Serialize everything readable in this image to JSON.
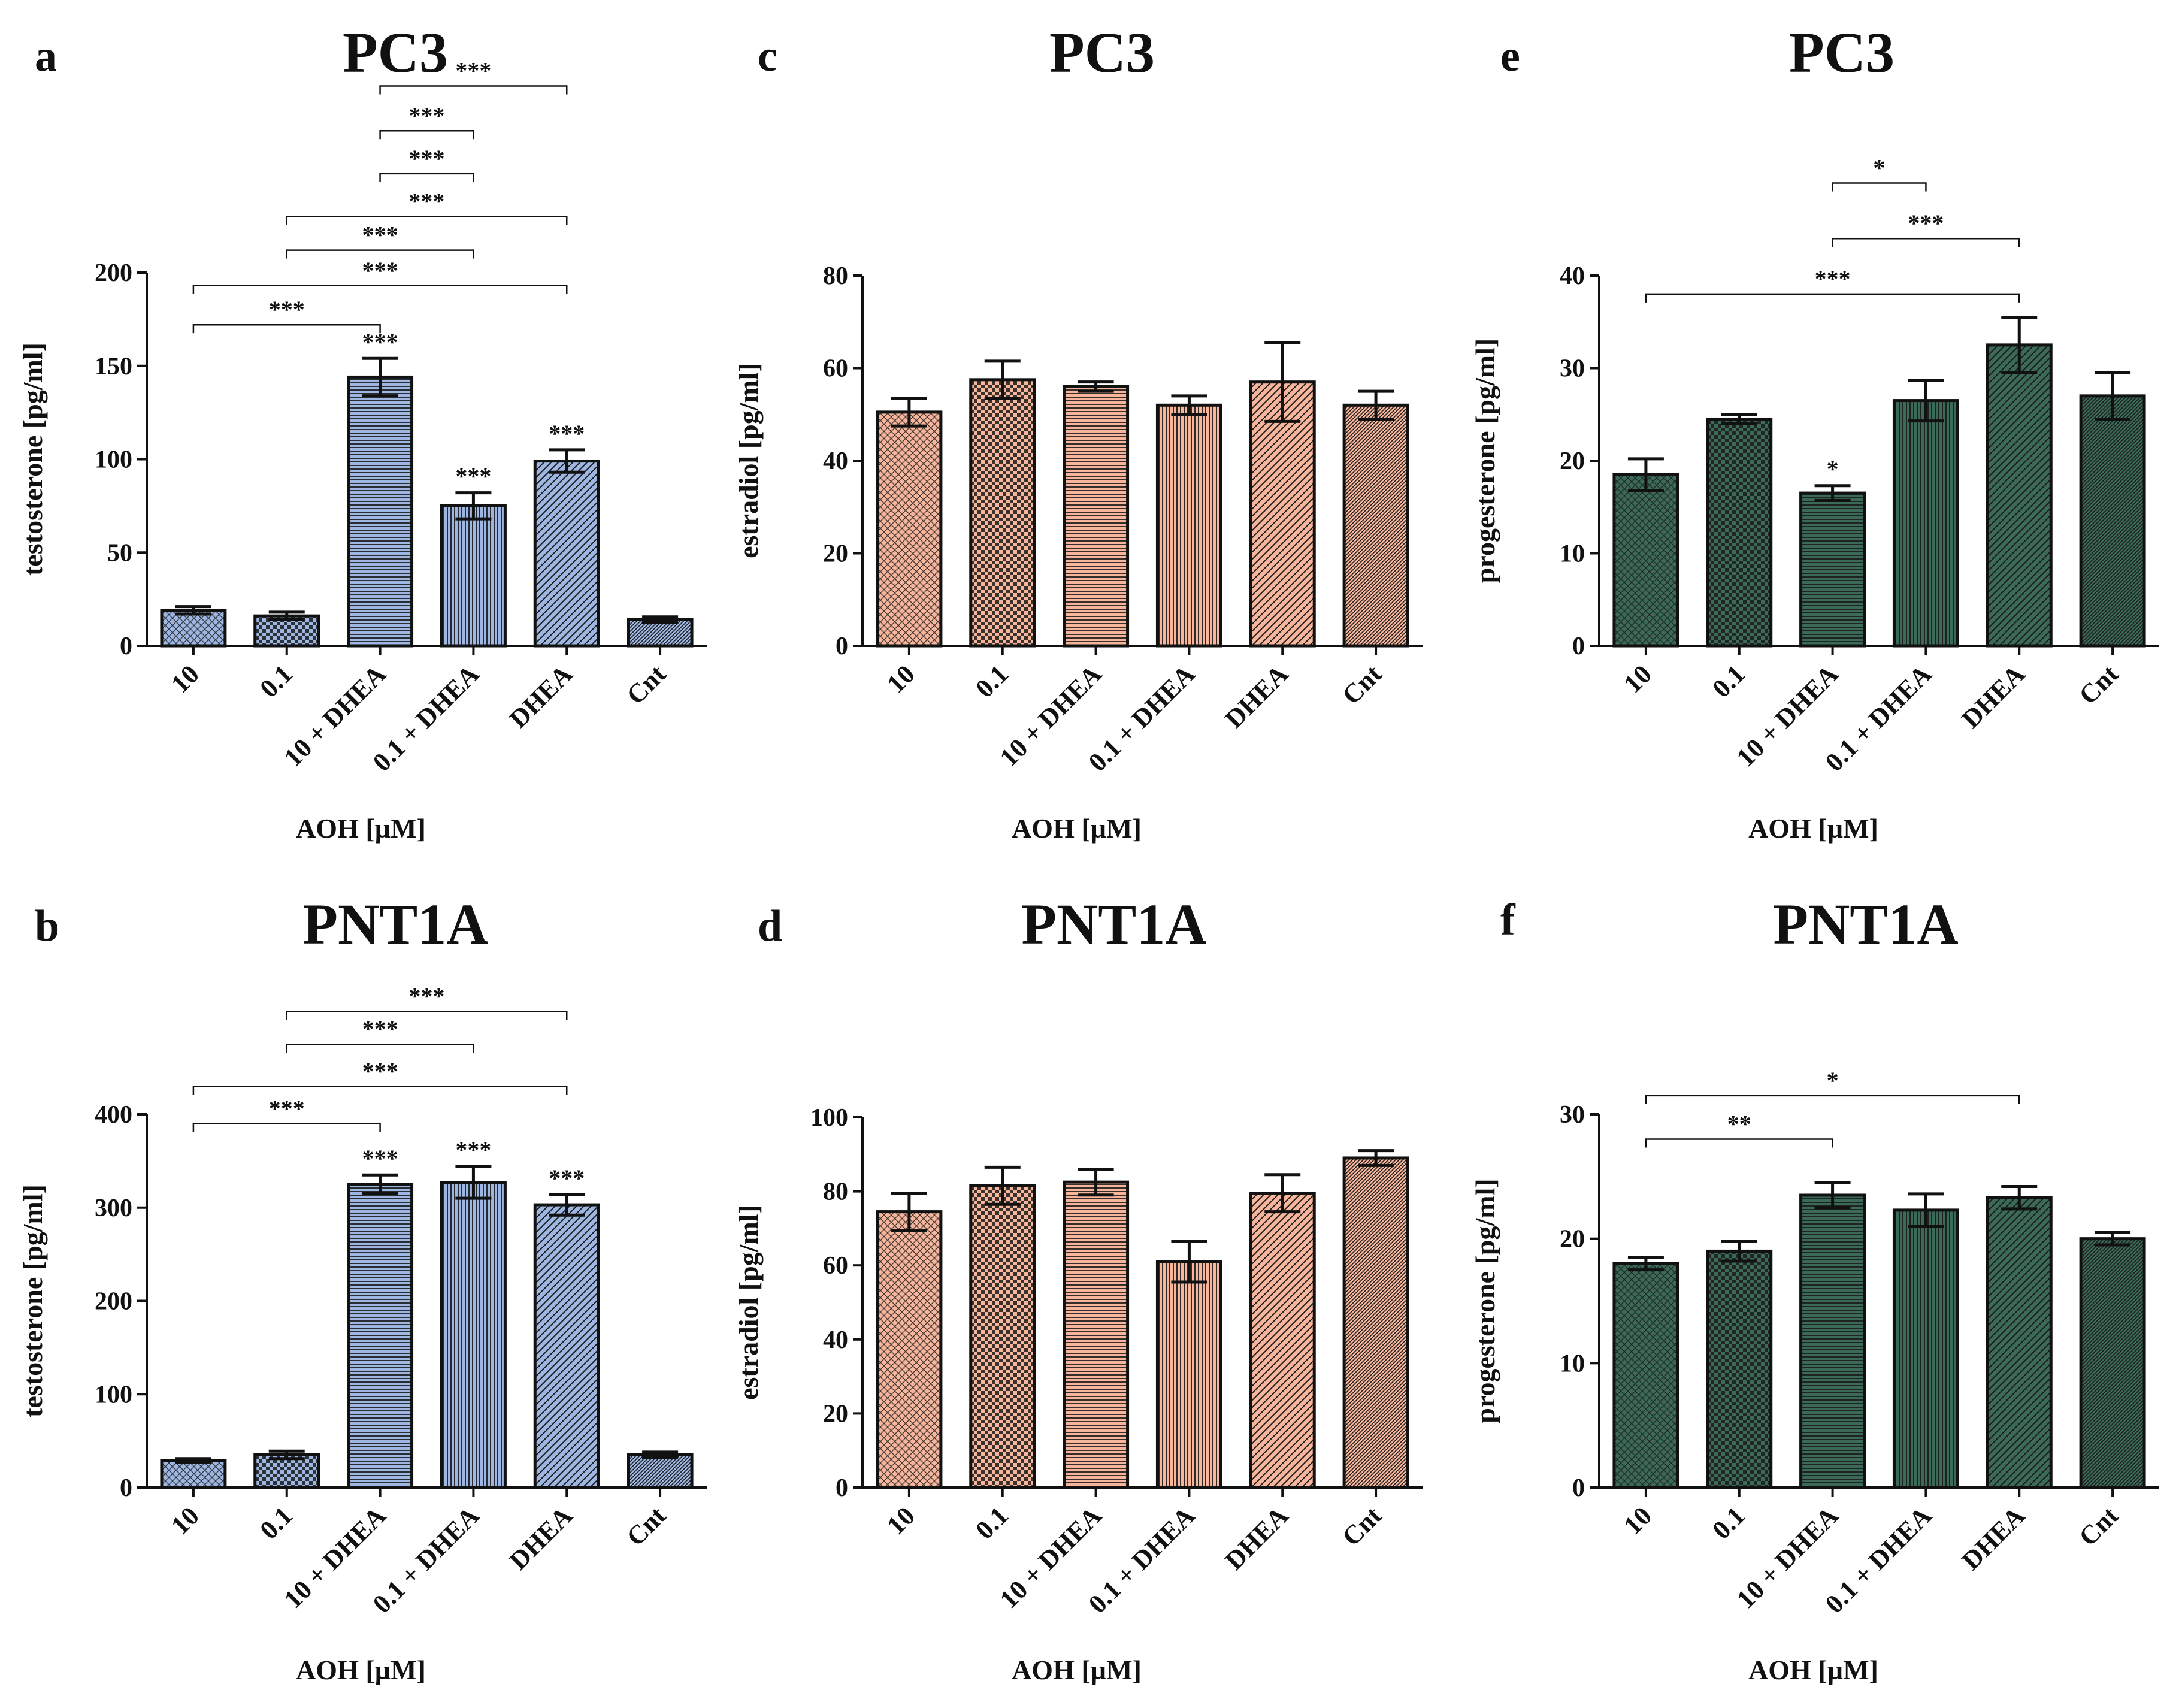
{
  "figure": {
    "panels": [
      "a",
      "b",
      "c",
      "d",
      "e",
      "f"
    ]
  },
  "colors": {
    "blue": "#9db6e2",
    "salmon": "#f7b69b",
    "green": "#3b6a57",
    "line": "#111111"
  },
  "chart_data": [
    {
      "id": "a",
      "type": "bar",
      "letter": "a",
      "title": "PC3",
      "xlabel": "AOH [µM]",
      "ylabel": "testosterone  [pg/ml]",
      "categories": [
        "10",
        "0.1",
        "10 + DHEA",
        "0.1 + DHEA",
        "DHEA",
        "Cnt"
      ],
      "values": [
        19,
        16,
        144,
        75,
        99,
        14
      ],
      "errors": [
        2,
        2,
        10,
        7,
        6,
        1.5
      ],
      "ylim": [
        0,
        200
      ],
      "yticks": [
        0,
        50,
        100,
        150,
        200
      ],
      "bar_stars": [
        "",
        "",
        "***",
        "***",
        "***",
        ""
      ],
      "brackets": [
        {
          "from": 0,
          "to": 2,
          "y": 172,
          "label": "***"
        },
        {
          "from": 0,
          "to": 4,
          "y": 193,
          "label": "***"
        },
        {
          "from": 1,
          "to": 3,
          "y": 212,
          "label": "***"
        },
        {
          "from": 1,
          "to": 4,
          "y": 230,
          "label": "***"
        },
        {
          "from": 2,
          "to": 3,
          "y": 253,
          "label": "***"
        },
        {
          "from": 2,
          "to": 3,
          "y": 276,
          "label": "***"
        },
        {
          "from": 2,
          "to": 4,
          "y": 300,
          "label": "***"
        }
      ]
    },
    {
      "id": "b",
      "type": "bar",
      "letter": "b",
      "title": "PNT1A",
      "xlabel": "AOH [µM]",
      "ylabel": "testosterone [pg/ml]",
      "categories": [
        "10",
        "0.1",
        "10 + DHEA",
        "0.1 + DHEA",
        "DHEA",
        "Cnt"
      ],
      "values": [
        29,
        35,
        325,
        327,
        303,
        35
      ],
      "errors": [
        2,
        4,
        10,
        17,
        11,
        3
      ],
      "ylim": [
        0,
        400
      ],
      "yticks": [
        0,
        100,
        200,
        300,
        400
      ],
      "bar_stars": [
        "",
        "",
        "***",
        "***",
        "***",
        ""
      ],
      "brackets": [
        {
          "from": 0,
          "to": 2,
          "y": 390,
          "label": "***"
        },
        {
          "from": 0,
          "to": 4,
          "y": 430,
          "label": "***"
        },
        {
          "from": 1,
          "to": 3,
          "y": 475,
          "label": "***"
        },
        {
          "from": 1,
          "to": 4,
          "y": 510,
          "label": "***"
        }
      ]
    },
    {
      "id": "c",
      "type": "bar",
      "letter": "c",
      "title": "PC3",
      "xlabel": "AOH [µM]",
      "ylabel": "estradiol [pg/ml]",
      "categories": [
        "10",
        "0.1",
        "10 + DHEA",
        "0.1 + DHEA",
        "DHEA",
        "Cnt"
      ],
      "values": [
        50.5,
        57.5,
        56,
        52,
        57,
        52
      ],
      "errors": [
        3,
        4,
        1,
        2,
        8.5,
        3
      ],
      "ylim": [
        0,
        80
      ],
      "yticks": [
        0,
        20,
        40,
        60,
        80
      ],
      "bar_stars": [
        "",
        "",
        "",
        "",
        "",
        ""
      ],
      "brackets": []
    },
    {
      "id": "d",
      "type": "bar",
      "letter": "d",
      "title": "PNT1A",
      "xlabel": "AOH [µM]",
      "ylabel": "estradiol [pg/ml]",
      "categories": [
        "10",
        "0.1",
        "10 + DHEA",
        "0.1 + DHEA",
        "DHEA",
        "Cnt"
      ],
      "values": [
        74.5,
        81.5,
        82.5,
        61,
        79.5,
        89
      ],
      "errors": [
        5,
        5,
        3.5,
        5.5,
        5,
        2
      ],
      "ylim": [
        0,
        100
      ],
      "yticks": [
        0,
        20,
        40,
        60,
        80,
        100
      ],
      "bar_stars": [
        "",
        "",
        "",
        "",
        "",
        ""
      ],
      "brackets": []
    },
    {
      "id": "e",
      "type": "bar",
      "letter": "e",
      "title": "PC3",
      "xlabel": "AOH [µM]",
      "ylabel": "progesterone  [pg/ml]",
      "categories": [
        "10",
        "0.1",
        "10 + DHEA",
        "0.1 + DHEA",
        "DHEA",
        "Cnt"
      ],
      "values": [
        18.5,
        24.5,
        16.5,
        26.5,
        32.5,
        27
      ],
      "errors": [
        1.7,
        0.5,
        0.8,
        2.2,
        3,
        2.5
      ],
      "ylim": [
        0,
        40
      ],
      "yticks": [
        0,
        10,
        20,
        30,
        40
      ],
      "bar_stars": [
        "",
        "",
        "*",
        "",
        "",
        ""
      ],
      "brackets": [
        {
          "from": 0,
          "to": 4,
          "y": 38,
          "label": "***"
        },
        {
          "from": 2,
          "to": 4,
          "y": 44,
          "label": "***"
        },
        {
          "from": 2,
          "to": 3,
          "y": 50,
          "label": "*"
        }
      ]
    },
    {
      "id": "f",
      "type": "bar",
      "letter": "f",
      "title": "PNT1A",
      "xlabel": "AOH [µM]",
      "ylabel": "progesterone [pg/ml]",
      "categories": [
        "10",
        "0.1",
        "10 + DHEA",
        "0.1 + DHEA",
        "DHEA",
        "Cnt"
      ],
      "values": [
        18,
        19,
        23.5,
        22.3,
        23.3,
        20
      ],
      "errors": [
        0.5,
        0.8,
        1,
        1.3,
        0.9,
        0.5
      ],
      "ylim": [
        0,
        30
      ],
      "yticks": [
        0,
        10,
        20,
        30
      ],
      "bar_stars": [
        "",
        "",
        "",
        "",
        "",
        ""
      ],
      "brackets": [
        {
          "from": 0,
          "to": 2,
          "y": 28,
          "label": "**"
        },
        {
          "from": 0,
          "to": 4,
          "y": 31.5,
          "label": "*"
        }
      ]
    }
  ]
}
